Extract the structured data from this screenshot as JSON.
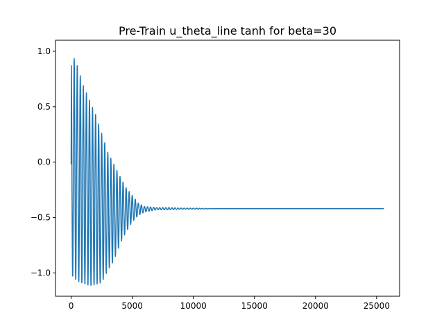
{
  "chart_data": {
    "type": "line",
    "title": "Pre-Train u_theta_line tanh for beta=30",
    "xlabel": "",
    "ylabel": "",
    "xlim": [
      -1280,
      26880
    ],
    "ylim": [
      -1.21,
      1.1
    ],
    "grid": false,
    "line_color": "#1f77b4",
    "xticks": [
      0,
      5000,
      10000,
      15000,
      20000,
      25000
    ],
    "xtick_labels": [
      "0",
      "5000",
      "10000",
      "15000",
      "20000",
      "25000"
    ],
    "yticks": [
      -1.0,
      -0.5,
      0.0,
      0.5,
      1.0
    ],
    "ytick_labels": [
      "−1.0",
      "−0.5",
      "0.0",
      "0.5",
      "1.0"
    ],
    "series": [
      {
        "x_start": 0,
        "x_end": 25600,
        "period": 250,
        "envelope": {
          "x": [
            0,
            500,
            1000,
            1500,
            2000,
            2500,
            3000,
            3500,
            4000,
            4500,
            5000,
            5500,
            6000,
            7000,
            8000,
            9000,
            10000,
            12000,
            25600
          ],
          "max": [
            1.0,
            0.87,
            0.69,
            0.56,
            0.43,
            0.26,
            0.09,
            -0.02,
            -0.13,
            -0.23,
            -0.3,
            -0.37,
            -0.4,
            -0.41,
            -0.41,
            -0.415,
            -0.415,
            -0.42,
            -0.42
          ],
          "min": [
            -1.02,
            -1.08,
            -1.1,
            -1.12,
            -1.11,
            -1.09,
            -0.98,
            -0.89,
            -0.74,
            -0.63,
            -0.54,
            -0.48,
            -0.45,
            -0.43,
            -0.43,
            -0.425,
            -0.425,
            -0.42,
            -0.42
          ]
        }
      }
    ]
  }
}
